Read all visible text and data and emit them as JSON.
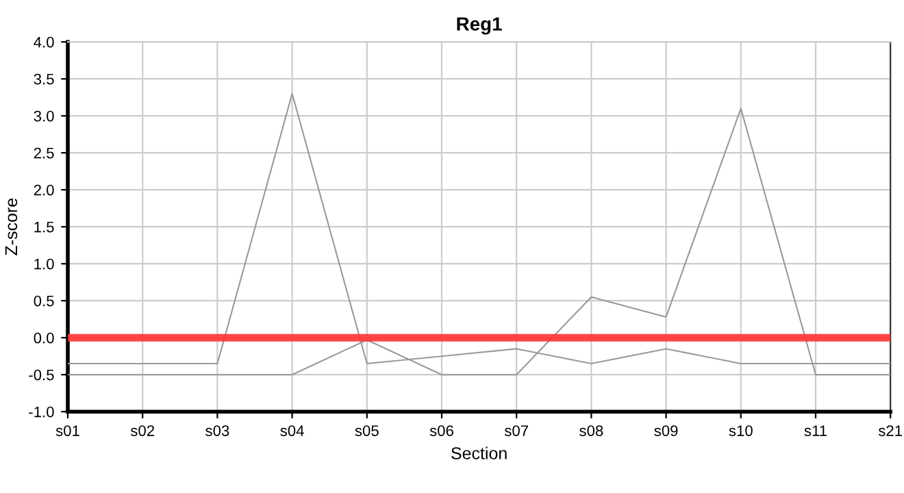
{
  "chart_data": {
    "type": "line",
    "title": "Reg1",
    "xlabel": "Section",
    "ylabel": "Z-score",
    "categories": [
      "s01",
      "s02",
      "s03",
      "s04",
      "s05",
      "s06",
      "s07",
      "s08",
      "s09",
      "s10",
      "s11",
      "s21"
    ],
    "series": [
      {
        "color": "#999999",
        "values": [
          -0.35,
          -0.35,
          -0.35,
          3.3,
          -0.35,
          -0.25,
          -0.15,
          -0.35,
          -0.15,
          -0.35,
          -0.35,
          -0.35
        ]
      },
      {
        "color": "#999999",
        "values": [
          -0.5,
          -0.5,
          -0.5,
          -0.5,
          -0.03,
          -0.5,
          -0.5,
          0.55,
          0.28,
          3.1,
          -0.5,
          -0.5
        ]
      }
    ],
    "ylim": [
      -1.0,
      4.0
    ],
    "yticks": [
      {
        "value": -1.0,
        "label": "-1.0"
      },
      {
        "value": -0.5,
        "label": "-0.5"
      },
      {
        "value": 0,
        "label": "0.0"
      },
      {
        "value": 0.5,
        "label": "0.5"
      },
      {
        "value": 1.0,
        "label": "1.0"
      },
      {
        "value": 1.5,
        "label": "1.5"
      },
      {
        "value": 2.0,
        "label": "2.0"
      },
      {
        "value": 2.5,
        "label": "2.5"
      },
      {
        "value": 3.0,
        "label": "3.0"
      },
      {
        "value": 3.5,
        "label": "3.5"
      },
      {
        "value": 4.0,
        "label": "4.0"
      }
    ],
    "ref_lines": [
      {
        "axis": "y",
        "value": 0,
        "label": null,
        "color": "#ff3333"
      }
    ],
    "grid": true,
    "legend": false,
    "marker": "none",
    "line_style": "solid"
  }
}
